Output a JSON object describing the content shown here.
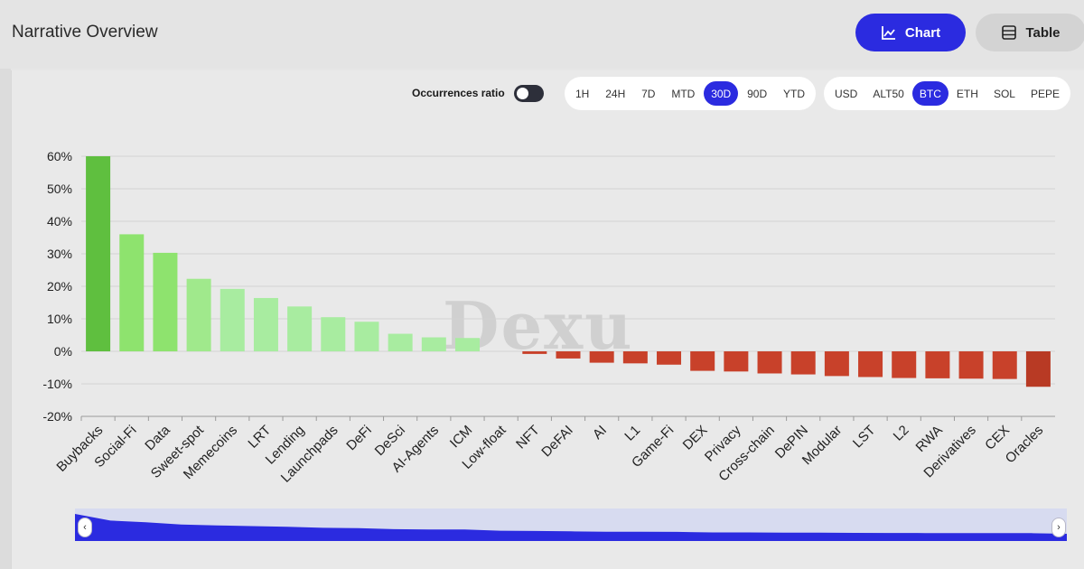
{
  "header": {
    "title": "Narrative Overview",
    "chart_button": "Chart",
    "table_button": "Table"
  },
  "controls": {
    "ratio_label": "Occurrences ratio",
    "timeframes": [
      "1H",
      "24H",
      "7D",
      "MTD",
      "30D",
      "90D",
      "YTD"
    ],
    "active_timeframe": "30D",
    "currencies": [
      "USD",
      "ALT50",
      "BTC",
      "ETH",
      "SOL",
      "PEPE"
    ],
    "active_currency": "BTC"
  },
  "watermark": "Dexu",
  "colors": {
    "accent": "#2b2be0",
    "top_positive": "#5fbf3f",
    "positive_mid": "#8ee36e",
    "positive_light": "#a8eca0",
    "negative": "#c8412a",
    "negative_strong": "#b83a24"
  },
  "chart_data": {
    "type": "bar",
    "categories": [
      "Buybacks",
      "Social-Fi",
      "Data",
      "Sweet-spot",
      "Memecoins",
      "LRT",
      "Lending",
      "Launchpads",
      "DeFi",
      "DeSci",
      "AI-Agents",
      "ICM",
      "Low-float",
      "NFT",
      "DeFAI",
      "AI",
      "L1",
      "Game-Fi",
      "DEX",
      "Privacy",
      "Cross-chain",
      "DePIN",
      "Modular",
      "LST",
      "L2",
      "RWA",
      "Derivatives",
      "CEX",
      "Oracles"
    ],
    "values": [
      60,
      36,
      30.3,
      22.3,
      19.2,
      16.4,
      13.8,
      10.5,
      9.1,
      5.4,
      4.3,
      4.1,
      0,
      -0.8,
      -2.2,
      -3.5,
      -3.7,
      -4.1,
      -6.0,
      -6.2,
      -6.8,
      -7.1,
      -7.6,
      -7.9,
      -8.2,
      -8.3,
      -8.4,
      -8.5,
      -10.9
    ],
    "yticks": [
      "60%",
      "50%",
      "40%",
      "30%",
      "20%",
      "10%",
      "0%",
      "-10%",
      "-20%"
    ],
    "ylim": [
      -20,
      60
    ],
    "grid": true
  }
}
